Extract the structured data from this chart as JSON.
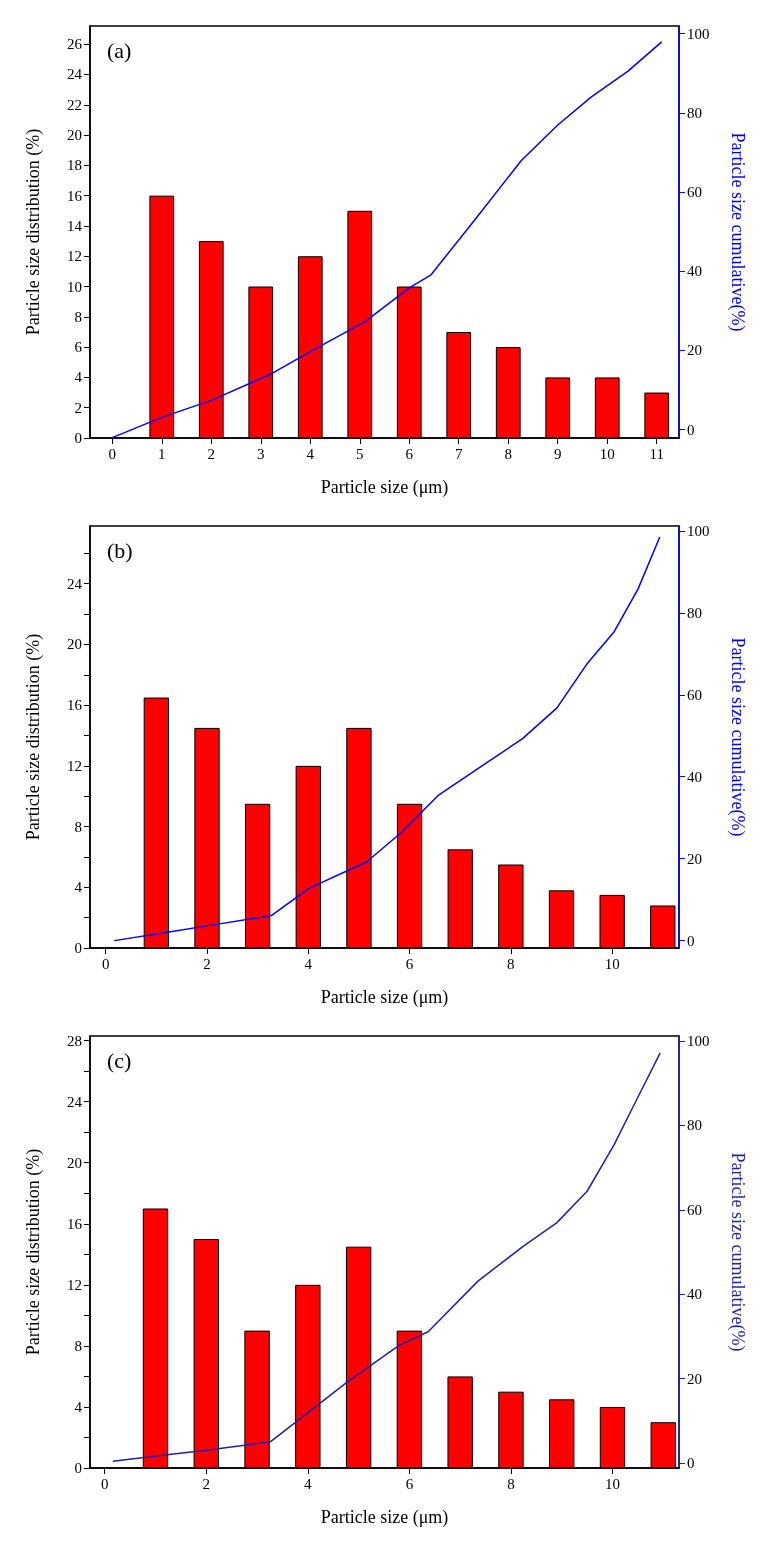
{
  "chart_data": [
    {
      "type": "bar",
      "title": "(a)",
      "xlabel": "Particle size (μm)",
      "ylabel": "Particle size distribution (%)",
      "y2label": "Particle size cumulative(%)",
      "x": [
        1,
        2,
        3,
        4,
        5,
        6,
        7,
        8,
        9,
        10,
        11
      ],
      "series": [
        {
          "color": "#ff0000",
          "values": [
            16,
            13,
            10,
            12,
            15,
            10,
            7,
            6,
            4,
            4,
            3
          ]
        },
        {
          "type": "line",
          "axis": "y2",
          "color": "#0000ff",
          "x": [
            0,
            1,
            2,
            3.2,
            4.1,
            5.1,
            6,
            6.44,
            7.37,
            8.26,
            9,
            9.68,
            10.42,
            11.1
          ],
          "values": [
            -2,
            3.1,
            7.4,
            14,
            20.4,
            27.2,
            35.8,
            39.1,
            53.7,
            67.9,
            76.9,
            84,
            90.5,
            97.9
          ]
        }
      ],
      "xlim": [
        -0.45,
        11.45
      ],
      "xticks": [
        0,
        1,
        2,
        3,
        4,
        5,
        6,
        7,
        8,
        9,
        10,
        11
      ],
      "ylim": [
        0,
        27.2
      ],
      "yticks": [
        0,
        2,
        4,
        6,
        8,
        10,
        12,
        14,
        16,
        18,
        20,
        22,
        24,
        26
      ],
      "y2lim": [
        -2.1,
        101.9
      ],
      "y2ticks": [
        0,
        20,
        40,
        60,
        80,
        100
      ],
      "grid": false,
      "marker": "none",
      "line_style": "solid"
    },
    {
      "type": "bar",
      "title": "(b)",
      "xlabel": "Particle size (μm)",
      "ylabel": "Particle size distribution (%)",
      "y2label": "Particle size cumulative(%)",
      "x": [
        1,
        2,
        3,
        4,
        5,
        6,
        7,
        8,
        9,
        10,
        11
      ],
      "series": [
        {
          "color": "#ff0000",
          "values": [
            16.5,
            14.5,
            9.5,
            12,
            14.5,
            9.5,
            6.5,
            5.5,
            3.8,
            3.5,
            2.8
          ]
        },
        {
          "type": "line",
          "axis": "y2",
          "color": "#0000ff",
          "x": [
            0.17,
            1.25,
            2,
            3.27,
            4.02,
            5.15,
            5.82,
            6.58,
            8.23,
            8.91,
            9.5,
            10.04,
            10.51,
            10.94
          ],
          "values": [
            0,
            2.1,
            3.6,
            6.1,
            12.8,
            19.2,
            26.2,
            35.6,
            49.3,
            56.8,
            67.5,
            75.4,
            85.8,
            98.5
          ]
        }
      ],
      "xlim": [
        -0.31,
        11.32
      ],
      "xticks": [
        0,
        2,
        4,
        6,
        8,
        10
      ],
      "ylim": [
        0,
        27.8
      ],
      "yticks": [
        0,
        {
          "value": 2,
          "label": null
        },
        4,
        {
          "value": 6,
          "label": null
        },
        8,
        {
          "value": 10,
          "label": null
        },
        12,
        {
          "value": 14,
          "label": null
        },
        16,
        {
          "value": 18,
          "label": null
        },
        20,
        {
          "value": 22,
          "label": null
        },
        24,
        {
          "value": 26,
          "label": null
        }
      ],
      "y2lim": [
        -1.8,
        101.2
      ],
      "y2ticks": [
        0,
        20,
        40,
        60,
        80,
        100
      ],
      "grid": false,
      "marker": "none",
      "line_style": "solid"
    },
    {
      "type": "bar",
      "title": "(c)",
      "xlabel": "Particle size (μm)",
      "ylabel": "Particle size distribution (%)",
      "y2label": "Particle size cumulative(%)",
      "x": [
        1,
        2,
        3,
        4,
        5,
        6,
        7,
        8,
        9,
        10,
        11
      ],
      "series": [
        {
          "color": "#ff0000",
          "values": [
            17,
            15,
            9,
            12,
            14.5,
            9,
            6,
            5,
            4.5,
            4,
            3
          ]
        },
        {
          "type": "line",
          "axis": "y2",
          "color": "#1f1fb4",
          "x": [
            0.16,
            1.14,
            2,
            3.26,
            3.82,
            4.78,
            5.79,
            6.37,
            7.35,
            8.26,
            8.9,
            9.5,
            10.03,
            10.48,
            10.94
          ],
          "values": [
            0.4,
            1.8,
            3,
            5,
            10.2,
            19.2,
            27.8,
            31.1,
            43.1,
            51.5,
            56.9,
            64.4,
            75.4,
            86.2,
            97.2
          ]
        }
      ],
      "xlim": [
        -0.29,
        11.31
      ],
      "xticks": [
        0,
        2,
        4,
        6,
        8,
        10
      ],
      "ylim": [
        0,
        28.3
      ],
      "yticks": [
        0,
        {
          "value": 2,
          "label": null
        },
        4,
        {
          "value": 6,
          "label": null
        },
        8,
        {
          "value": 10,
          "label": null
        },
        12,
        {
          "value": 14,
          "label": null
        },
        16,
        {
          "value": 18,
          "label": null
        },
        20,
        {
          "value": 22,
          "label": null
        },
        24,
        {
          "value": 26,
          "label": null
        },
        28
      ],
      "y2lim": [
        -1.2,
        101.2
      ],
      "y2ticks": [
        0,
        20,
        40,
        60,
        80,
        100
      ],
      "grid": false,
      "marker": "none",
      "line_style": "solid"
    }
  ]
}
